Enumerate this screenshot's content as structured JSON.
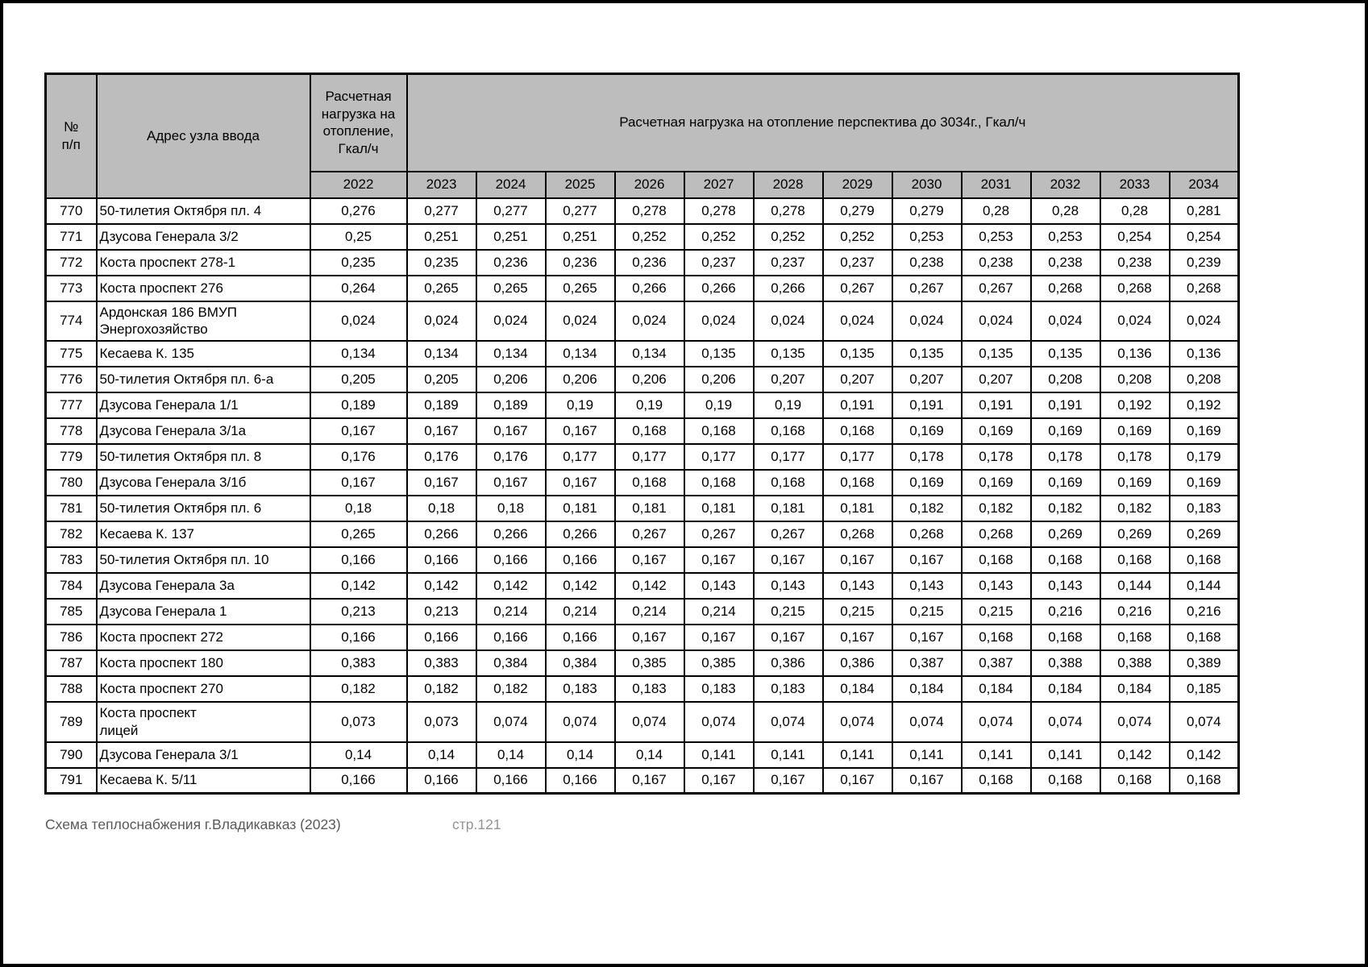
{
  "header": {
    "num": "№\nп/п",
    "address": "Адрес узла ввода",
    "load_2022": "Расчетная нагрузка на отопление, Гкал/ч",
    "perspective": "Расчетная нагрузка на отопление перспектива до 3034г., Гкал/ч",
    "years": [
      "2022",
      "2023",
      "2024",
      "2025",
      "2026",
      "2027",
      "2028",
      "2029",
      "2030",
      "2031",
      "2032",
      "2033",
      "2034"
    ]
  },
  "rows": [
    {
      "num": "770",
      "address": "50-тилетия Октября пл. 4",
      "values": [
        "0,276",
        "0,277",
        "0,277",
        "0,277",
        "0,278",
        "0,278",
        "0,278",
        "0,279",
        "0,279",
        "0,28",
        "0,28",
        "0,28",
        "0,281"
      ]
    },
    {
      "num": "771",
      "address": "Дзусова Генерала 3/2",
      "values": [
        "0,25",
        "0,251",
        "0,251",
        "0,251",
        "0,252",
        "0,252",
        "0,252",
        "0,252",
        "0,253",
        "0,253",
        "0,253",
        "0,254",
        "0,254"
      ]
    },
    {
      "num": "772",
      "address": "Коста проспект 278-1",
      "values": [
        "0,235",
        "0,235",
        "0,236",
        "0,236",
        "0,236",
        "0,237",
        "0,237",
        "0,237",
        "0,238",
        "0,238",
        "0,238",
        "0,238",
        "0,239"
      ]
    },
    {
      "num": "773",
      "address": "Коста проспект 276",
      "values": [
        "0,264",
        "0,265",
        "0,265",
        "0,265",
        "0,266",
        "0,266",
        "0,266",
        "0,267",
        "0,267",
        "0,267",
        "0,268",
        "0,268",
        "0,268"
      ]
    },
    {
      "num": "774",
      "address": "Ардонская 186 ВМУП\nЭнергохозяйство",
      "values": [
        "0,024",
        "0,024",
        "0,024",
        "0,024",
        "0,024",
        "0,024",
        "0,024",
        "0,024",
        "0,024",
        "0,024",
        "0,024",
        "0,024",
        "0,024"
      ]
    },
    {
      "num": "775",
      "address": "Кесаева К. 135",
      "values": [
        "0,134",
        "0,134",
        "0,134",
        "0,134",
        "0,134",
        "0,135",
        "0,135",
        "0,135",
        "0,135",
        "0,135",
        "0,135",
        "0,136",
        "0,136"
      ]
    },
    {
      "num": "776",
      "address": "50-тилетия Октября пл. 6-а",
      "values": [
        "0,205",
        "0,205",
        "0,206",
        "0,206",
        "0,206",
        "0,206",
        "0,207",
        "0,207",
        "0,207",
        "0,207",
        "0,208",
        "0,208",
        "0,208"
      ]
    },
    {
      "num": "777",
      "address": "Дзусова Генерала 1/1",
      "values": [
        "0,189",
        "0,189",
        "0,189",
        "0,19",
        "0,19",
        "0,19",
        "0,19",
        "0,191",
        "0,191",
        "0,191",
        "0,191",
        "0,192",
        "0,192"
      ]
    },
    {
      "num": "778",
      "address": "Дзусова Генерала 3/1а",
      "values": [
        "0,167",
        "0,167",
        "0,167",
        "0,167",
        "0,168",
        "0,168",
        "0,168",
        "0,168",
        "0,169",
        "0,169",
        "0,169",
        "0,169",
        "0,169"
      ]
    },
    {
      "num": "779",
      "address": "50-тилетия Октября пл. 8",
      "values": [
        "0,176",
        "0,176",
        "0,176",
        "0,177",
        "0,177",
        "0,177",
        "0,177",
        "0,177",
        "0,178",
        "0,178",
        "0,178",
        "0,178",
        "0,179"
      ]
    },
    {
      "num": "780",
      "address": "Дзусова Генерала 3/1б",
      "values": [
        "0,167",
        "0,167",
        "0,167",
        "0,167",
        "0,168",
        "0,168",
        "0,168",
        "0,168",
        "0,169",
        "0,169",
        "0,169",
        "0,169",
        "0,169"
      ]
    },
    {
      "num": "781",
      "address": "50-тилетия Октября пл. 6",
      "values": [
        "0,18",
        "0,18",
        "0,18",
        "0,181",
        "0,181",
        "0,181",
        "0,181",
        "0,181",
        "0,182",
        "0,182",
        "0,182",
        "0,182",
        "0,183"
      ]
    },
    {
      "num": "782",
      "address": "Кесаева К. 137",
      "values": [
        "0,265",
        "0,266",
        "0,266",
        "0,266",
        "0,267",
        "0,267",
        "0,267",
        "0,268",
        "0,268",
        "0,268",
        "0,269",
        "0,269",
        "0,269"
      ]
    },
    {
      "num": "783",
      "address": "50-тилетия Октября пл. 10",
      "values": [
        "0,166",
        "0,166",
        "0,166",
        "0,166",
        "0,167",
        "0,167",
        "0,167",
        "0,167",
        "0,167",
        "0,168",
        "0,168",
        "0,168",
        "0,168"
      ]
    },
    {
      "num": "784",
      "address": "Дзусова Генерала 3а",
      "values": [
        "0,142",
        "0,142",
        "0,142",
        "0,142",
        "0,142",
        "0,143",
        "0,143",
        "0,143",
        "0,143",
        "0,143",
        "0,143",
        "0,144",
        "0,144"
      ]
    },
    {
      "num": "785",
      "address": "Дзусова Генерала 1",
      "values": [
        "0,213",
        "0,213",
        "0,214",
        "0,214",
        "0,214",
        "0,214",
        "0,215",
        "0,215",
        "0,215",
        "0,215",
        "0,216",
        "0,216",
        "0,216"
      ]
    },
    {
      "num": "786",
      "address": "Коста проспект 272",
      "values": [
        "0,166",
        "0,166",
        "0,166",
        "0,166",
        "0,167",
        "0,167",
        "0,167",
        "0,167",
        "0,167",
        "0,168",
        "0,168",
        "0,168",
        "0,168"
      ]
    },
    {
      "num": "787",
      "address": "Коста проспект 180",
      "values": [
        "0,383",
        "0,383",
        "0,384",
        "0,384",
        "0,385",
        "0,385",
        "0,386",
        "0,386",
        "0,387",
        "0,387",
        "0,388",
        "0,388",
        "0,389"
      ]
    },
    {
      "num": "788",
      "address": "Коста проспект 270",
      "values": [
        "0,182",
        "0,182",
        "0,182",
        "0,183",
        "0,183",
        "0,183",
        "0,183",
        "0,184",
        "0,184",
        "0,184",
        "0,184",
        "0,184",
        "0,185"
      ]
    },
    {
      "num": "789",
      "address": "Коста проспект\nлицей",
      "values": [
        "0,073",
        "0,073",
        "0,074",
        "0,074",
        "0,074",
        "0,074",
        "0,074",
        "0,074",
        "0,074",
        "0,074",
        "0,074",
        "0,074",
        "0,074"
      ]
    },
    {
      "num": "790",
      "address": "Дзусова Генерала 3/1",
      "values": [
        "0,14",
        "0,14",
        "0,14",
        "0,14",
        "0,14",
        "0,141",
        "0,141",
        "0,141",
        "0,141",
        "0,141",
        "0,141",
        "0,142",
        "0,142"
      ]
    },
    {
      "num": "791",
      "address": "Кесаева К. 5/11",
      "values": [
        "0,166",
        "0,166",
        "0,166",
        "0,166",
        "0,167",
        "0,167",
        "0,167",
        "0,167",
        "0,167",
        "0,168",
        "0,168",
        "0,168",
        "0,168"
      ]
    }
  ],
  "footer": {
    "title": "Схема теплоснабжения г.Владикавказ (2023)",
    "page": "стр.121"
  }
}
